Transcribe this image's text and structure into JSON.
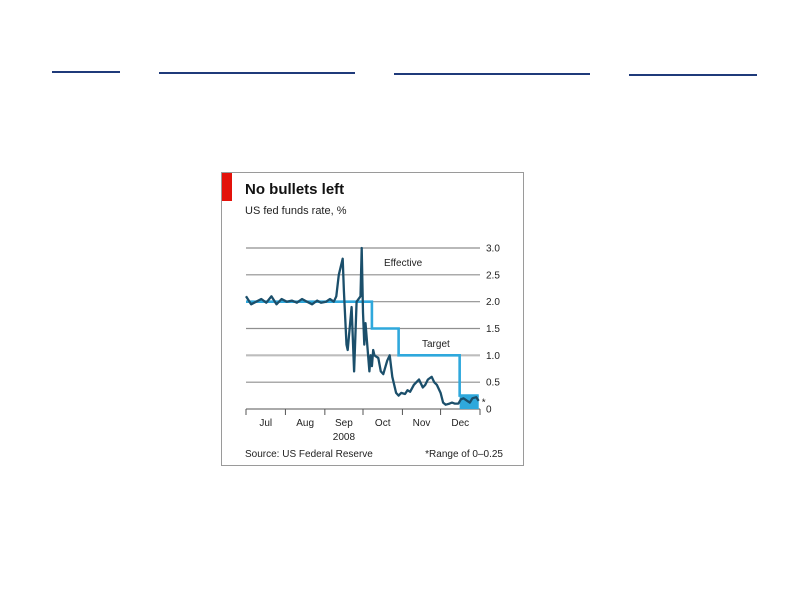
{
  "chart_data": {
    "type": "line",
    "title": "No bullets left",
    "subtitle": "US fed funds rate, %",
    "xlabel": "2008",
    "ylabel": "",
    "ylim": [
      0,
      3.0
    ],
    "yticks": [
      "3.0",
      "2.5",
      "2.0",
      "1.5",
      "1.0",
      "0.5",
      "0"
    ],
    "month_labels": [
      "Jul",
      "Aug",
      "Sep",
      "Oct",
      "Nov",
      "Dec"
    ],
    "grid": true,
    "series": [
      {
        "name": "Effective",
        "color": "#1b4f6b",
        "x": [
          "2008-07-01",
          "2008-07-05",
          "2008-07-09",
          "2008-07-13",
          "2008-07-17",
          "2008-07-21",
          "2008-07-25",
          "2008-07-29",
          "2008-08-02",
          "2008-08-06",
          "2008-08-10",
          "2008-08-14",
          "2008-08-18",
          "2008-08-22",
          "2008-08-26",
          "2008-08-29",
          "2008-09-02",
          "2008-09-05",
          "2008-09-08",
          "2008-09-10",
          "2008-09-12",
          "2008-09-15",
          "2008-09-16",
          "2008-09-17",
          "2008-09-18",
          "2008-09-19",
          "2008-09-22",
          "2008-09-24",
          "2008-09-26",
          "2008-09-29",
          "2008-09-30",
          "2008-10-01",
          "2008-10-02",
          "2008-10-03",
          "2008-10-06",
          "2008-10-07",
          "2008-10-08",
          "2008-10-09",
          "2008-10-10",
          "2008-10-13",
          "2008-10-15",
          "2008-10-17",
          "2008-10-20",
          "2008-10-22",
          "2008-10-24",
          "2008-10-27",
          "2008-10-29",
          "2008-10-31",
          "2008-11-03",
          "2008-11-05",
          "2008-11-07",
          "2008-11-10",
          "2008-11-12",
          "2008-11-14",
          "2008-11-17",
          "2008-11-19",
          "2008-11-21",
          "2008-11-24",
          "2008-11-26",
          "2008-11-28",
          "2008-12-01",
          "2008-12-03",
          "2008-12-05",
          "2008-12-08",
          "2008-12-10",
          "2008-12-12",
          "2008-12-15",
          "2008-12-17",
          "2008-12-19",
          "2008-12-22",
          "2008-12-24",
          "2008-12-26",
          "2008-12-29",
          "2008-12-31"
        ],
        "values": [
          2.1,
          1.95,
          2.0,
          2.05,
          1.98,
          2.1,
          1.95,
          2.05,
          2.0,
          2.02,
          1.98,
          2.05,
          2.0,
          1.95,
          2.02,
          1.98,
          2.0,
          2.05,
          2.0,
          2.1,
          2.5,
          2.8,
          2.2,
          1.7,
          1.2,
          1.1,
          1.9,
          0.7,
          2.0,
          2.1,
          3.0,
          1.8,
          1.2,
          1.6,
          0.7,
          1.0,
          0.8,
          1.1,
          1.0,
          0.95,
          0.7,
          0.65,
          0.9,
          1.0,
          0.6,
          0.3,
          0.25,
          0.3,
          0.28,
          0.35,
          0.32,
          0.45,
          0.5,
          0.55,
          0.4,
          0.45,
          0.55,
          0.6,
          0.5,
          0.45,
          0.3,
          0.12,
          0.08,
          0.1,
          0.12,
          0.1,
          0.1,
          0.18,
          0.2,
          0.15,
          0.12,
          0.2,
          0.22,
          0.15
        ]
      },
      {
        "name": "Target",
        "color": "#2fa8dc",
        "steps": [
          {
            "from": "2008-07-01",
            "to": "2008-10-08",
            "value": 2.0
          },
          {
            "from": "2008-10-08",
            "to": "2008-10-29",
            "value": 1.5
          },
          {
            "from": "2008-10-29",
            "to": "2008-12-16",
            "value": 1.0
          },
          {
            "from": "2008-12-16",
            "to": "2008-12-31",
            "value": 0.25
          }
        ],
        "range_note": "*"
      }
    ],
    "annotations": [
      {
        "text": "Effective",
        "near": "2008-10-05"
      },
      {
        "text": "Target",
        "near": "2008-11-20"
      }
    ],
    "source": "Source: US Federal Reserve",
    "footnote": "*Range of 0–0.25"
  }
}
